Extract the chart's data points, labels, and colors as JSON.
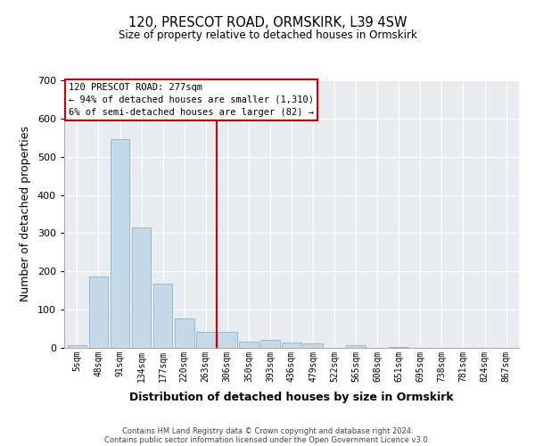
{
  "title": "120, PRESCOT ROAD, ORMSKIRK, L39 4SW",
  "subtitle": "Size of property relative to detached houses in Ormskirk",
  "xlabel": "Distribution of detached houses by size in Ormskirk",
  "ylabel": "Number of detached properties",
  "bar_labels": [
    "5sqm",
    "48sqm",
    "91sqm",
    "134sqm",
    "177sqm",
    "220sqm",
    "263sqm",
    "306sqm",
    "350sqm",
    "393sqm",
    "436sqm",
    "479sqm",
    "522sqm",
    "565sqm",
    "608sqm",
    "651sqm",
    "695sqm",
    "738sqm",
    "781sqm",
    "824sqm",
    "867sqm"
  ],
  "bar_values": [
    8,
    187,
    547,
    316,
    168,
    76,
    41,
    41,
    17,
    22,
    14,
    12,
    0,
    8,
    0,
    2,
    0,
    0,
    0,
    0,
    0
  ],
  "bar_color": "#c6d9e8",
  "bar_edge_color": "#9ab8cc",
  "ylim": [
    0,
    700
  ],
  "yticks": [
    0,
    100,
    200,
    300,
    400,
    500,
    600,
    700
  ],
  "vline_x": 7.0,
  "vline_color": "#cc0000",
  "annotation_title": "120 PRESCOT ROAD: 277sqm",
  "annotation_line1": "← 94% of detached houses are smaller (1,310)",
  "annotation_line2": "6% of semi-detached houses are larger (82) →",
  "annotation_box_color": "#ffffff",
  "annotation_box_edgecolor": "#cc0000",
  "footer1": "Contains HM Land Registry data © Crown copyright and database right 2024.",
  "footer2": "Contains public sector information licensed under the Open Government Licence v3.0."
}
